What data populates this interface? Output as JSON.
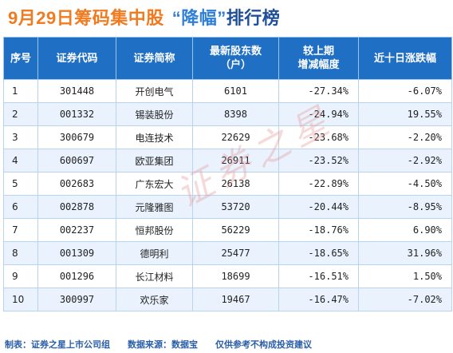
{
  "title": {
    "part1": "9月29日筹码集中股",
    "part2": "“降幅”",
    "part3": "排行榜"
  },
  "table": {
    "headers": [
      {
        "line1": "序号",
        "line2": ""
      },
      {
        "line1": "证券代码",
        "line2": ""
      },
      {
        "line1": "证券简称",
        "line2": ""
      },
      {
        "line1": "最新股东数",
        "line2": "（户）"
      },
      {
        "line1": "较上期",
        "line2": "增减幅度"
      },
      {
        "line1": "近十日涨跌幅",
        "line2": ""
      }
    ],
    "rows": [
      {
        "rank": "1",
        "code": "301448",
        "name": "开创电气",
        "holders": "6101",
        "change": "-27.34%",
        "ten_day": "-6.07%"
      },
      {
        "rank": "2",
        "code": "001332",
        "name": "锡装股份",
        "holders": "8398",
        "change": "-24.94%",
        "ten_day": "19.55%"
      },
      {
        "rank": "3",
        "code": "300679",
        "name": "电连技术",
        "holders": "22629",
        "change": "-23.68%",
        "ten_day": "-2.20%"
      },
      {
        "rank": "4",
        "code": "600697",
        "name": "欧亚集团",
        "holders": "26911",
        "change": "-23.52%",
        "ten_day": "-2.92%"
      },
      {
        "rank": "5",
        "code": "002683",
        "name": "广东宏大",
        "holders": "26138",
        "change": "-22.89%",
        "ten_day": "-4.50%"
      },
      {
        "rank": "6",
        "code": "002878",
        "name": "元隆雅图",
        "holders": "53720",
        "change": "-20.44%",
        "ten_day": "-8.95%"
      },
      {
        "rank": "7",
        "code": "002237",
        "name": "恒邦股份",
        "holders": "56229",
        "change": "-18.76%",
        "ten_day": "6.90%"
      },
      {
        "rank": "8",
        "code": "001309",
        "name": "德明利",
        "holders": "25477",
        "change": "-18.65%",
        "ten_day": "31.96%"
      },
      {
        "rank": "9",
        "code": "001296",
        "name": "长江材料",
        "holders": "18699",
        "change": "-16.51%",
        "ten_day": "1.50%"
      },
      {
        "rank": "10",
        "code": "300997",
        "name": "欢乐家",
        "holders": "19467",
        "change": "-16.47%",
        "ten_day": "-7.02%"
      }
    ]
  },
  "watermark": "证券之星",
  "footer": {
    "producer": "制表：证券之星上市公司组",
    "source": "数据来源：数据宝",
    "disclaimer": "仅供参考不构成投资建议"
  },
  "colors": {
    "title_orange": "#f07b20",
    "title_blue": "#2f7fd8",
    "header_blue": "#1f6fc5",
    "row_alt": "#eaf3fd",
    "footer_blue": "#2a5ea8"
  }
}
